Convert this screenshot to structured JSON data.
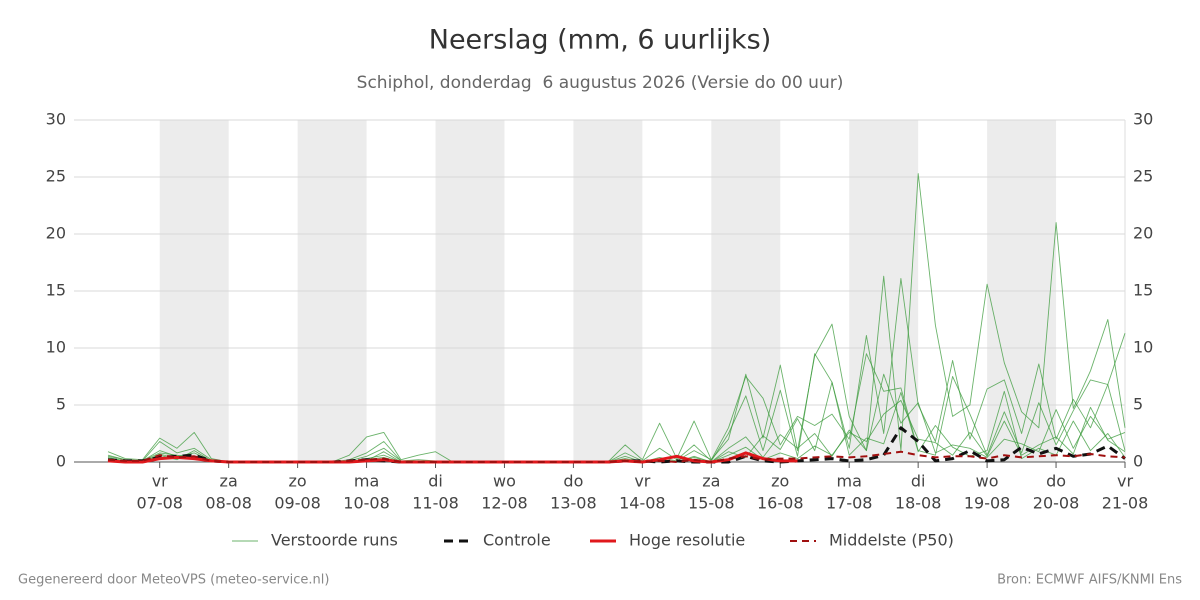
{
  "chart_data": {
    "type": "line",
    "title": "Neerslag (mm, 6 uurlijks)",
    "subtitle": "Schiphol, donderdag  6 augustus 2026 (Versie do 00 uur)",
    "footer_left": "Gegenereerd door MeteoVPS (meteo-service.nl)",
    "footer_right": "Bron: ECMWF AIFS/KNMI Ens",
    "categories": [
      null,
      null,
      null,
      {
        "day": "vr",
        "date": "07-08"
      },
      null,
      null,
      null,
      {
        "day": "za",
        "date": "08-08"
      },
      null,
      null,
      null,
      {
        "day": "zo",
        "date": "09-08"
      },
      null,
      null,
      null,
      {
        "day": "ma",
        "date": "10-08"
      },
      null,
      null,
      null,
      {
        "day": "di",
        "date": "11-08"
      },
      null,
      null,
      null,
      {
        "day": "wo",
        "date": "12-08"
      },
      null,
      null,
      null,
      {
        "day": "do",
        "date": "13-08"
      },
      null,
      null,
      null,
      {
        "day": "vr",
        "date": "14-08"
      },
      null,
      null,
      null,
      {
        "day": "za",
        "date": "15-08"
      },
      null,
      null,
      null,
      {
        "day": "zo",
        "date": "16-08"
      },
      null,
      null,
      null,
      {
        "day": "ma",
        "date": "17-08"
      },
      null,
      null,
      null,
      {
        "day": "di",
        "date": "18-08"
      },
      null,
      null,
      null,
      {
        "day": "wo",
        "date": "19-08"
      },
      null,
      null,
      null,
      {
        "day": "do",
        "date": "20-08"
      },
      null,
      null,
      null,
      {
        "day": "vr",
        "date": "21-08"
      }
    ],
    "ylim": [
      0,
      30
    ],
    "yticks": [
      0,
      5,
      10,
      15,
      20,
      25,
      30
    ],
    "grid": true,
    "series": [
      {
        "name": "Verstoorde runs",
        "color": "#3a9a3a",
        "style": "thin",
        "members": [
          [
            0.9,
            0.3,
            0.2,
            2.1,
            1.2,
            2.6,
            0.3,
            0,
            0,
            0,
            0,
            0,
            0,
            0,
            0.6,
            2.2,
            2.6,
            0.2,
            0.6,
            0.9,
            0,
            0,
            0,
            0,
            0,
            0,
            0,
            0,
            0,
            0,
            1.5,
            0.2,
            3.4,
            0.3,
            3.6,
            0.2,
            2.0,
            7.7,
            2.1,
            8.5,
            1.0,
            9.3,
            12.1,
            4.0,
            1.0,
            16.3,
            1.0,
            25.3,
            12.0,
            4.0,
            5.0,
            15.6,
            8.7,
            4.4,
            3.0,
            21.0,
            4.7,
            8.0,
            12.5,
            3.0
          ],
          [
            0.6,
            0.2,
            0.1,
            1.8,
            0.8,
            1.2,
            0.2,
            0,
            0,
            0,
            0,
            0,
            0,
            0,
            0.2,
            0.8,
            1.8,
            0.1,
            0.2,
            0.1,
            0,
            0,
            0,
            0,
            0,
            0,
            0,
            0,
            0,
            0,
            0.8,
            0.1,
            1.2,
            0.2,
            1.5,
            0.1,
            2.5,
            5.8,
            1.0,
            6.3,
            0.5,
            9.5,
            7.0,
            1.2,
            11.1,
            2.5,
            16.1,
            5.0,
            1.8,
            8.9,
            2.0,
            6.4,
            7.2,
            2.5,
            8.6,
            2.0,
            5.5,
            3.0,
            6.8,
            11.3
          ],
          [
            0.4,
            0.1,
            0.1,
            1.0,
            0.5,
            0.8,
            0.1,
            0,
            0,
            0,
            0,
            0,
            0,
            0,
            0.1,
            0.5,
            1.2,
            0.1,
            0,
            0,
            0,
            0,
            0,
            0,
            0,
            0,
            0,
            0,
            0,
            0,
            0.5,
            0,
            0.4,
            0.1,
            1.0,
            0.2,
            3.0,
            7.5,
            5.6,
            1.5,
            4.0,
            3.2,
            4.2,
            2.0,
            9.5,
            6.2,
            6.5,
            1.0,
            0.6,
            7.5,
            4.2,
            0.6,
            4.4,
            0.8,
            5.2,
            1.5,
            4.5,
            7.2,
            6.8,
            1.0
          ],
          [
            0.3,
            0.1,
            0,
            0.7,
            0.3,
            0.5,
            0,
            0,
            0,
            0,
            0,
            0,
            0,
            0,
            0,
            0.3,
            0.6,
            0,
            0,
            0,
            0,
            0,
            0,
            0,
            0,
            0,
            0,
            0,
            0,
            0,
            0.2,
            0,
            0.2,
            0,
            0.5,
            0,
            1.2,
            2.2,
            0.4,
            2.4,
            1.2,
            2.5,
            0.5,
            2.8,
            1.0,
            7.7,
            3.4,
            5.2,
            0.8,
            1.5,
            1.2,
            0.4,
            2.0,
            1.6,
            0.9,
            4.6,
            1.2,
            4.0,
            2.0,
            2.6
          ],
          [
            0.2,
            0,
            0,
            0.6,
            0.2,
            1.0,
            0.1,
            0,
            0,
            0,
            0,
            0,
            0,
            0,
            0,
            0.1,
            0.9,
            0,
            0,
            0,
            0,
            0,
            0,
            0,
            0,
            0,
            0,
            0,
            0,
            0,
            0.1,
            0,
            0.1,
            0,
            0.2,
            0,
            0.6,
            1.3,
            0.2,
            0.8,
            0.3,
            1.4,
            0.6,
            2.6,
            1.8,
            4.2,
            5.4,
            2.0,
            1.7,
            0.6,
            2.6,
            0.5,
            3.6,
            0.6,
            1.5,
            2.2,
            0.7,
            4.8,
            1.9,
            0.9
          ],
          [
            0.5,
            0.2,
            0.1,
            0.8,
            0.6,
            0.3,
            0,
            0,
            0,
            0,
            0,
            0,
            0,
            0,
            0,
            0.2,
            0.4,
            0,
            0,
            0,
            0,
            0,
            0,
            0,
            0,
            0,
            0,
            0,
            0,
            0,
            0.3,
            0,
            0.2,
            0,
            0.4,
            0,
            0.9,
            0.4,
            2.3,
            1.1,
            3.8,
            1.0,
            7.0,
            0.6,
            2.1,
            1.6,
            6.1,
            0.9,
            3.2,
            1.3,
            0.5,
            1.0,
            6.2,
            0.3,
            1.2,
            0.6,
            3.6,
            1.0,
            2.5,
            0.4
          ]
        ]
      },
      {
        "name": "Controle",
        "color": "#111111",
        "style": "dashed",
        "values": [
          0.2,
          0.1,
          0.1,
          0.4,
          0.5,
          0.6,
          0.1,
          0,
          0,
          0,
          0,
          0,
          0,
          0,
          0.1,
          0.2,
          0.1,
          0,
          0,
          0,
          0,
          0,
          0,
          0,
          0,
          0,
          0,
          0,
          0,
          0,
          0.1,
          0.1,
          0,
          0.1,
          0,
          0,
          0,
          0.5,
          0.1,
          0,
          0.1,
          0.2,
          0.3,
          0.1,
          0.2,
          0.6,
          3.0,
          1.8,
          0.1,
          0.3,
          1.0,
          0.1,
          0.2,
          1.3,
          0.7,
          1.2,
          0.5,
          0.7,
          1.4,
          0.3
        ]
      },
      {
        "name": "Hoge resolutie",
        "color": "#e0181c",
        "style": "solid",
        "values": [
          0.1,
          0,
          0,
          0.3,
          0.4,
          0.3,
          0.1,
          0,
          0,
          0,
          0,
          0,
          0,
          0,
          0,
          0.1,
          0.2,
          0,
          0,
          0,
          0,
          0,
          0,
          0,
          0,
          0,
          0,
          0,
          0,
          0,
          0.1,
          0,
          0.2,
          0.5,
          0.1,
          0,
          0.2,
          0.8,
          0.3,
          0.1,
          0.1,
          null,
          null,
          null,
          null,
          null,
          null,
          null,
          null,
          null,
          null,
          null,
          null,
          null,
          null,
          null,
          null,
          null,
          null,
          null
        ]
      },
      {
        "name": "Middelste (P50)",
        "color": "#a01010",
        "style": "dashed-thin",
        "values": [
          0.2,
          0.1,
          0.1,
          0.6,
          0.4,
          0.5,
          0.1,
          0,
          0,
          0,
          0,
          0,
          0,
          0,
          0.1,
          0.2,
          0.3,
          0,
          0,
          0,
          0,
          0,
          0,
          0,
          0,
          0,
          0,
          0,
          0,
          0,
          0.1,
          0,
          0.1,
          0,
          0.2,
          0,
          0.3,
          0.5,
          0.2,
          0.3,
          0.3,
          0.4,
          0.5,
          0.4,
          0.5,
          0.7,
          0.9,
          0.6,
          0.4,
          0.5,
          0.5,
          0.3,
          0.6,
          0.4,
          0.5,
          0.6,
          0.5,
          0.7,
          0.5,
          0.4
        ]
      }
    ]
  }
}
